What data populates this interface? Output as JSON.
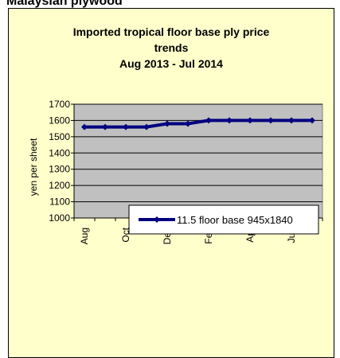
{
  "header": "Malaysian plywood",
  "chart_data": {
    "type": "line",
    "title": "Imported tropical floor base ply price trends",
    "subtitle": "Aug 2013 - Jul 2014",
    "y_label": "yen per sheet",
    "categories": [
      "Aug",
      null,
      "Oct",
      null,
      "Dec",
      null,
      "Feb",
      null,
      "Apr",
      null,
      "Jun",
      null
    ],
    "series": [
      {
        "name": "11.5 floor base 945x1840",
        "color": "#000080",
        "values": [
          1560,
          1560,
          1560,
          1560,
          1580,
          1580,
          1600,
          1600,
          1600,
          1600,
          1600,
          1600
        ]
      }
    ],
    "ylim": [
      1000,
      1700
    ],
    "yticks": [
      1000,
      1100,
      1200,
      1300,
      1400,
      1500,
      1600,
      1700
    ],
    "grid": true,
    "legend": "right"
  }
}
